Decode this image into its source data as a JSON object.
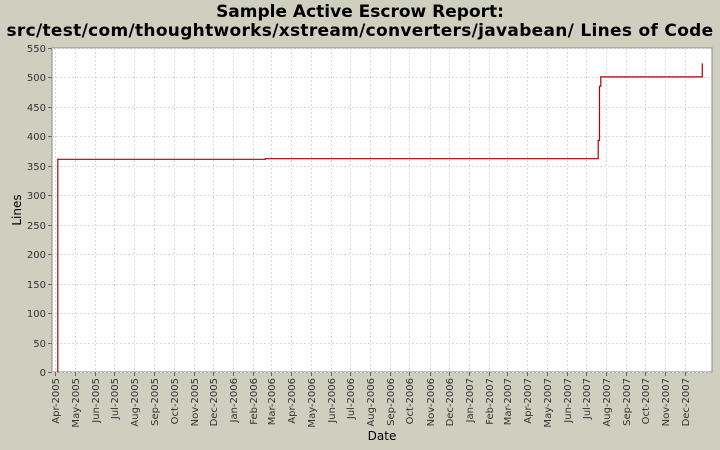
{
  "chart_data": {
    "type": "line",
    "title": "Sample Active Escrow Report:",
    "subtitle": "src/test/com/thoughtworks/xstream/converters/javabean/ Lines of Code",
    "xlabel": "Date",
    "ylabel": "Lines",
    "ylim": [
      0,
      550
    ],
    "yticks": [
      0,
      50,
      100,
      150,
      200,
      250,
      300,
      350,
      400,
      450,
      500,
      550
    ],
    "xlim": [
      "2005-03-27",
      "2008-01-12"
    ],
    "xticks": [
      {
        "date": "2005-04-01",
        "label": "Apr-2005"
      },
      {
        "date": "2005-05-01",
        "label": "May-2005"
      },
      {
        "date": "2005-06-01",
        "label": "Jun-2005"
      },
      {
        "date": "2005-07-01",
        "label": "Jul-2005"
      },
      {
        "date": "2005-08-01",
        "label": "Aug-2005"
      },
      {
        "date": "2005-09-01",
        "label": "Sep-2005"
      },
      {
        "date": "2005-10-01",
        "label": "Oct-2005"
      },
      {
        "date": "2005-11-01",
        "label": "Nov-2005"
      },
      {
        "date": "2005-12-01",
        "label": "Dec-2005"
      },
      {
        "date": "2006-01-01",
        "label": "Jan-2006"
      },
      {
        "date": "2006-02-01",
        "label": "Feb-2006"
      },
      {
        "date": "2006-03-01",
        "label": "Mar-2006"
      },
      {
        "date": "2006-04-01",
        "label": "Apr-2006"
      },
      {
        "date": "2006-05-01",
        "label": "May-2006"
      },
      {
        "date": "2006-06-01",
        "label": "Jun-2006"
      },
      {
        "date": "2006-07-01",
        "label": "Jul-2006"
      },
      {
        "date": "2006-08-01",
        "label": "Aug-2006"
      },
      {
        "date": "2006-09-01",
        "label": "Sep-2006"
      },
      {
        "date": "2006-10-01",
        "label": "Oct-2006"
      },
      {
        "date": "2006-11-01",
        "label": "Nov-2006"
      },
      {
        "date": "2006-12-01",
        "label": "Dec-2006"
      },
      {
        "date": "2007-01-01",
        "label": "Jan-2007"
      },
      {
        "date": "2007-02-01",
        "label": "Feb-2007"
      },
      {
        "date": "2007-03-01",
        "label": "Mar-2007"
      },
      {
        "date": "2007-04-01",
        "label": "Apr-2007"
      },
      {
        "date": "2007-05-01",
        "label": "May-2007"
      },
      {
        "date": "2007-06-01",
        "label": "Jun-2007"
      },
      {
        "date": "2007-07-01",
        "label": "Jul-2007"
      },
      {
        "date": "2007-08-01",
        "label": "Aug-2007"
      },
      {
        "date": "2007-09-01",
        "label": "Sep-2007"
      },
      {
        "date": "2007-10-01",
        "label": "Oct-2007"
      },
      {
        "date": "2007-11-01",
        "label": "Nov-2007"
      },
      {
        "date": "2007-12-01",
        "label": "Dec-2007"
      }
    ],
    "grid": true,
    "legend": "none",
    "step": true,
    "series": [
      {
        "color": "#b00000",
        "points": [
          {
            "x": "2005-04-05",
            "y": 0
          },
          {
            "x": "2005-04-05",
            "y": 361
          },
          {
            "x": "2006-02-20",
            "y": 362
          },
          {
            "x": "2007-07-20",
            "y": 393
          },
          {
            "x": "2007-07-22",
            "y": 485
          },
          {
            "x": "2007-07-24",
            "y": 501
          },
          {
            "x": "2007-12-28",
            "y": 523
          }
        ]
      }
    ]
  },
  "colors": {
    "background": "#cfcfbf",
    "plot_background": "#ffffff",
    "gridline": "#d8d8d8",
    "series": "#b00000"
  }
}
